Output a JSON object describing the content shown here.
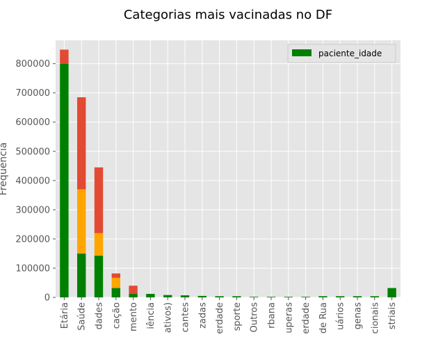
{
  "chart_data": {
    "type": "bar",
    "stacked": true,
    "title": "Categorias mais vacinadas no DF",
    "xlabel": "",
    "ylabel": "Frequência",
    "ylim": [
      0,
      880000
    ],
    "yticks": [
      0,
      100000,
      200000,
      300000,
      400000,
      500000,
      600000,
      700000,
      800000
    ],
    "grid": true,
    "legend_position": "top-right",
    "background_color": "#e5e5e5",
    "categories": [
      "Etária",
      "Saúde",
      "dades",
      "cação",
      "mento",
      "iência",
      "ativos)",
      "cantes",
      "zadas",
      "erdade",
      "sporte",
      "Outros",
      "rbana",
      "uperas",
      "erdade",
      "de Rua",
      "uários",
      "genas",
      "cionais",
      "striais"
    ],
    "series": [
      {
        "name": "paciente_idade",
        "color": "#008000",
        "values": [
          800000,
          150000,
          143000,
          32000,
          12000,
          12000,
          8000,
          7000,
          5000,
          4000,
          4000,
          2000,
          2000,
          2000,
          2000,
          4000,
          4000,
          4000,
          4000,
          32000
        ]
      },
      {
        "color": "#ffa500",
        "values": [
          0,
          220000,
          77000,
          35000,
          0,
          0,
          0,
          0,
          0,
          0,
          0,
          0,
          0,
          0,
          0,
          0,
          0,
          0,
          0,
          0
        ]
      },
      {
        "color": "#e24a33",
        "values": [
          48000,
          315000,
          225000,
          15000,
          28000,
          0,
          0,
          0,
          0,
          0,
          0,
          0,
          0,
          0,
          0,
          0,
          0,
          0,
          0,
          0
        ]
      }
    ]
  }
}
